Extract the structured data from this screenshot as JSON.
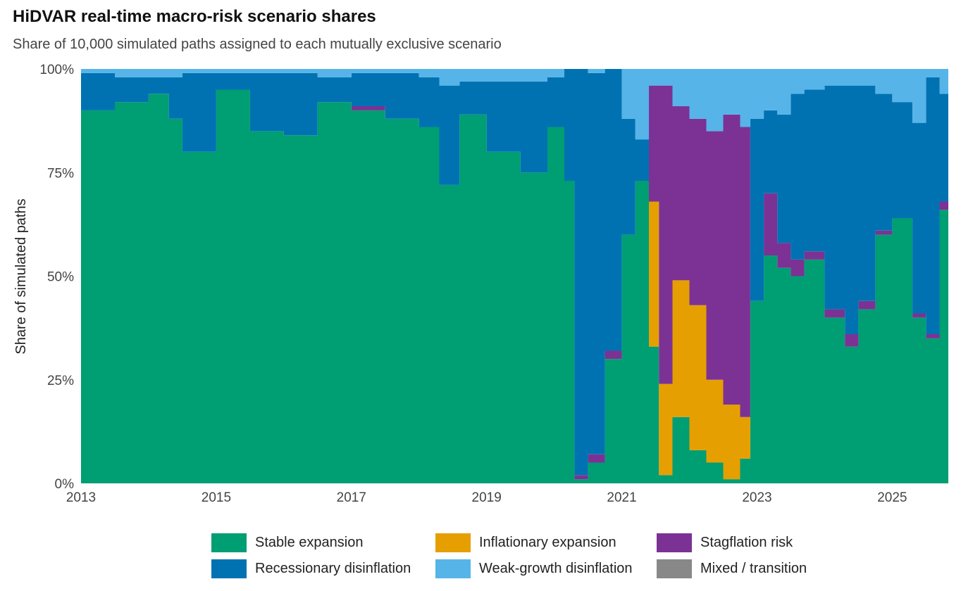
{
  "title": "HiDVAR real-time macro-risk scenario shares",
  "subtitle": "Share of 10,000 simulated paths assigned to each mutually exclusive scenario",
  "chart_data": {
    "type": "area",
    "stacked": true,
    "step": true,
    "ylabel": "Share of simulated paths",
    "xlabel": "",
    "xlim": [
      2013.0,
      2025.83
    ],
    "ylim": [
      0,
      100
    ],
    "x_ticks": [
      2013,
      2015,
      2017,
      2019,
      2021,
      2023,
      2025
    ],
    "y_ticks": [
      0,
      25,
      50,
      75,
      100
    ],
    "y_tick_labels": [
      "0%",
      "25%",
      "50%",
      "75%",
      "100%"
    ],
    "grid": false,
    "legend_position": "bottom",
    "series": [
      {
        "name": "Stable expansion",
        "color": "#009E73"
      },
      {
        "name": "Recessionary disinflation",
        "color": "#0072B2"
      },
      {
        "name": "Inflationary expansion",
        "color": "#E69F00"
      },
      {
        "name": "Weak-growth disinflation",
        "color": "#56B4E9"
      },
      {
        "name": "Stagflation risk",
        "color": "#7B3294"
      },
      {
        "name": "Mixed / transition",
        "color": "#888888"
      }
    ],
    "stack_order": [
      "Stable expansion",
      "Inflationary expansion",
      "Stagflation risk",
      "Recessionary disinflation",
      "Weak-growth disinflation"
    ],
    "x": [
      2013.0,
      2013.5,
      2014.0,
      2014.3,
      2014.5,
      2015.0,
      2015.5,
      2016.0,
      2016.5,
      2017.0,
      2017.5,
      2018.0,
      2018.3,
      2018.6,
      2019.0,
      2019.5,
      2019.9,
      2020.15,
      2020.3,
      2020.5,
      2020.75,
      2021.0,
      2021.2,
      2021.4,
      2021.55,
      2021.75,
      2022.0,
      2022.25,
      2022.5,
      2022.75,
      2022.9,
      2023.1,
      2023.3,
      2023.5,
      2023.7,
      2024.0,
      2024.3,
      2024.5,
      2024.75,
      2025.0,
      2025.3,
      2025.5,
      2025.7
    ],
    "stable": [
      90,
      92,
      94,
      88,
      80,
      95,
      85,
      84,
      92,
      90,
      88,
      86,
      72,
      89,
      80,
      75,
      86,
      73,
      1,
      5,
      30,
      60,
      73,
      33,
      2,
      16,
      8,
      5,
      1,
      6,
      44,
      55,
      52,
      50,
      54,
      40,
      33,
      42,
      60,
      64,
      40,
      35,
      66
    ],
    "inflation": [
      0,
      0,
      0,
      0,
      0,
      0,
      0,
      0,
      0,
      0,
      0,
      0,
      0,
      0,
      0,
      0,
      0,
      0,
      0,
      0,
      0,
      0,
      0,
      35,
      22,
      33,
      35,
      20,
      18,
      10,
      0,
      0,
      0,
      0,
      0,
      0,
      0,
      0,
      0,
      0,
      0,
      0,
      0
    ],
    "stagflation": [
      0,
      0,
      0,
      0,
      0,
      0,
      0,
      0,
      0,
      1,
      0,
      0,
      0,
      0,
      0,
      0,
      0,
      0,
      1,
      2,
      2,
      0,
      0,
      28,
      72,
      42,
      45,
      60,
      70,
      70,
      0,
      15,
      6,
      4,
      2,
      2,
      3,
      2,
      1,
      0,
      1,
      1,
      2
    ],
    "recession": [
      9,
      6,
      4,
      10,
      19,
      4,
      14,
      15,
      6,
      8,
      11,
      12,
      24,
      8,
      17,
      22,
      12,
      27,
      98,
      92,
      68,
      28,
      10,
      0,
      0,
      0,
      0,
      0,
      0,
      0,
      44,
      20,
      31,
      40,
      39,
      54,
      60,
      52,
      33,
      28,
      46,
      62,
      26
    ],
    "weak": [
      1,
      2,
      2,
      2,
      1,
      1,
      1,
      1,
      2,
      1,
      1,
      2,
      4,
      3,
      3,
      3,
      2,
      0,
      0,
      1,
      0,
      12,
      17,
      4,
      4,
      9,
      12,
      15,
      11,
      14,
      12,
      10,
      11,
      6,
      5,
      4,
      4,
      4,
      6,
      8,
      13,
      2,
      6
    ],
    "mixed": [
      0,
      0,
      0,
      0,
      0,
      0,
      0,
      0,
      0,
      0,
      0,
      0,
      0,
      0,
      0,
      0,
      0,
      0,
      0,
      0,
      0,
      0,
      0,
      0,
      0,
      0,
      0,
      0,
      0,
      0,
      0,
      0,
      0,
      0,
      0,
      0,
      0,
      0,
      0,
      0,
      0,
      0,
      0
    ]
  }
}
